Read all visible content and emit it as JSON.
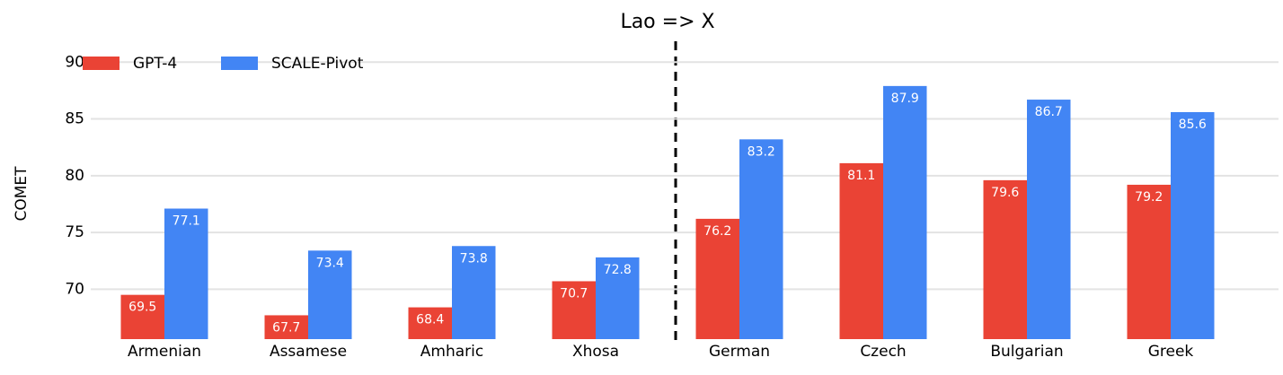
{
  "chart_data": {
    "type": "bar",
    "title": "Lao => X",
    "y_label": "COMET",
    "categories": [
      "Armenian",
      "Assamese",
      "Amharic",
      "Xhosa",
      "German",
      "Czech",
      "Bulgarian",
      "Greek"
    ],
    "series": [
      {
        "name": "GPT-4",
        "color": "#ea4335",
        "values": [
          69.5,
          67.7,
          68.4,
          70.7,
          76.2,
          81.1,
          79.6,
          79.2
        ]
      },
      {
        "name": "SCALE-Pivot",
        "color": "#4285f4",
        "values": [
          77.1,
          73.4,
          73.8,
          72.8,
          83.2,
          87.9,
          86.7,
          85.6
        ]
      }
    ],
    "ylim": [
      65.6,
      92
    ],
    "yticks": [
      70,
      75,
      80,
      85,
      90
    ],
    "grid": true,
    "legend": "upper left"
  }
}
